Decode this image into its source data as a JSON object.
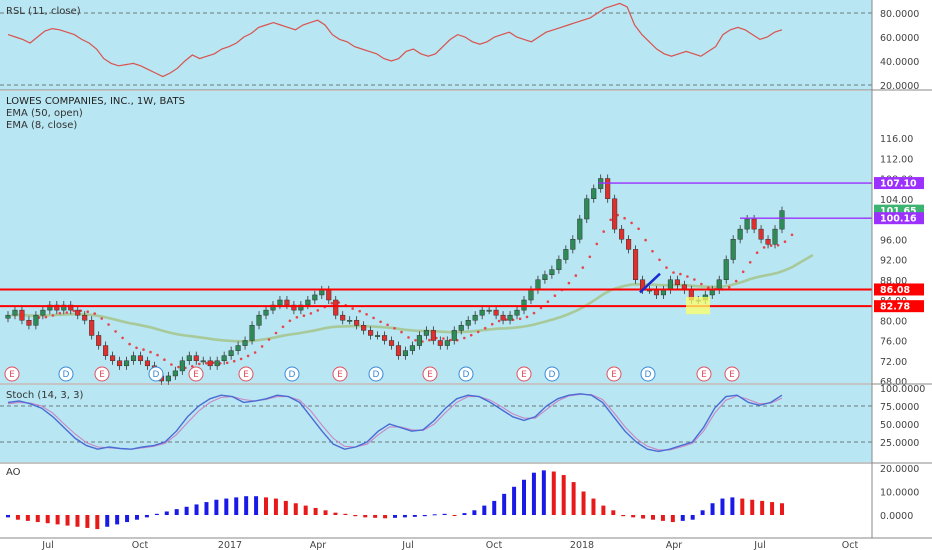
{
  "colors": {
    "panel_bg": "#b8e6f2",
    "up": "#2e8b57",
    "down": "#e0302e",
    "rsl_line": "#d9534f",
    "ema50": "#a8c99a",
    "ema8_dots": "#e8434a",
    "level": "#ff0000",
    "resistance": "#9b30ff",
    "stoch_k": "#4a6cd4",
    "stoch_d": "#c987c4",
    "ao_up": "#1a1ae6",
    "ao_down": "#e61a1a",
    "last_price": "#3cb371",
    "dividend": "#3b8bd6",
    "earnings": "#e05060"
  },
  "panels": {
    "rsl": {
      "title": "RSL (11, close)",
      "ticks": [
        "80.0000",
        "60.0000",
        "40.0000",
        "20.0000"
      ]
    },
    "price": {
      "title": "LOWES COMPANIES, INC., 1W, BATS",
      "legend": [
        "EMA (50, open)",
        "EMA (8, close)"
      ],
      "ticks": [
        "116.00",
        "112.00",
        "108.00",
        "104.00",
        "96.00",
        "92.00",
        "88.00",
        "84.00",
        "80.00",
        "76.00",
        "72.00",
        "68.00"
      ],
      "price_tags": [
        {
          "label": "107.10",
          "kind": "resistance",
          "value": 107.1
        },
        {
          "label": "101.65",
          "kind": "last",
          "value": 101.65
        },
        {
          "label": "100.16",
          "kind": "resistance",
          "value": 100.16
        },
        {
          "label": "86.08",
          "kind": "level",
          "value": 86.08
        },
        {
          "label": "82.78",
          "kind": "level",
          "value": 82.78
        }
      ],
      "events": [
        "E",
        "D",
        "E",
        "D",
        "E",
        "E",
        "D",
        "E",
        "D",
        "E",
        "D",
        "E",
        "D",
        "E",
        "D",
        "E",
        "E"
      ]
    },
    "stoch": {
      "title": "Stoch (14, 3, 3)",
      "ticks": [
        "100.0000",
        "75.0000",
        "50.0000",
        "25.0000"
      ]
    },
    "ao": {
      "title": "AO",
      "ticks": [
        "20.0000",
        "10.0000",
        "0.0000"
      ]
    }
  },
  "x_axis": [
    "Jul",
    "Oct",
    "2017",
    "Apr",
    "Jul",
    "Oct",
    "2018",
    "Apr",
    "Jul",
    "Oct"
  ],
  "chart_data": {
    "type": "candlestick",
    "title": "LOWES COMPANIES, INC., 1W, BATS",
    "ylim": [
      68,
      118
    ],
    "levels": [
      86.08,
      82.78
    ],
    "resistance_levels": [
      107.1,
      100.16
    ],
    "last_price": 101.65,
    "close": [
      81,
      82,
      80,
      79,
      81,
      82,
      83,
      82,
      83,
      82,
      81,
      80,
      77,
      75,
      73,
      72,
      71,
      72,
      73,
      72,
      71,
      69,
      68,
      69,
      70,
      72,
      73,
      72,
      72,
      71,
      72,
      73,
      74,
      75,
      76,
      79,
      81,
      82,
      83,
      84,
      83,
      82,
      83,
      84,
      85,
      86,
      84,
      81,
      80,
      80,
      79,
      78,
      77,
      77,
      76,
      75,
      73,
      74,
      75,
      77,
      78,
      76,
      75,
      76,
      78,
      79,
      80,
      81,
      82,
      82,
      81,
      80,
      81,
      82,
      84,
      86,
      88,
      89,
      90,
      92,
      94,
      96,
      100,
      104,
      106,
      108,
      104,
      98,
      96,
      94,
      88,
      86,
      86,
      85,
      86,
      88,
      87,
      86,
      84,
      84,
      85,
      86,
      88,
      92,
      96,
      98,
      100,
      98,
      96,
      95,
      98,
      101.65
    ],
    "rsl": [
      62,
      60,
      58,
      55,
      60,
      65,
      67,
      66,
      64,
      62,
      58,
      55,
      50,
      42,
      38,
      36,
      37,
      38,
      36,
      33,
      30,
      27,
      30,
      34,
      40,
      45,
      42,
      44,
      46,
      50,
      52,
      55,
      60,
      63,
      68,
      70,
      72,
      70,
      68,
      66,
      70,
      72,
      74,
      70,
      62,
      58,
      56,
      52,
      50,
      48,
      46,
      42,
      40,
      42,
      48,
      50,
      46,
      44,
      46,
      52,
      58,
      62,
      60,
      56,
      54,
      56,
      60,
      62,
      64,
      60,
      58,
      56,
      60,
      64,
      66,
      68,
      70,
      72,
      74,
      76,
      80,
      84,
      86,
      88,
      85,
      70,
      62,
      56,
      50,
      46,
      44,
      46,
      48,
      46,
      44,
      48,
      52,
      62,
      66,
      68,
      66,
      62,
      58,
      60,
      64,
      66
    ],
    "stoch_k": [
      80,
      82,
      78,
      72,
      60,
      45,
      30,
      20,
      15,
      18,
      16,
      15,
      18,
      20,
      25,
      40,
      60,
      75,
      85,
      90,
      88,
      80,
      82,
      85,
      90,
      88,
      80,
      60,
      40,
      22,
      15,
      18,
      25,
      40,
      50,
      45,
      40,
      42,
      55,
      72,
      85,
      90,
      88,
      80,
      70,
      60,
      55,
      60,
      75,
      85,
      90,
      92,
      90,
      80,
      60,
      40,
      25,
      15,
      12,
      15,
      20,
      25,
      45,
      72,
      88,
      90,
      80,
      76,
      80,
      90
    ],
    "stoch_d": [
      78,
      80,
      79,
      75,
      65,
      50,
      36,
      24,
      18,
      17,
      16,
      15,
      17,
      19,
      23,
      35,
      52,
      68,
      80,
      87,
      88,
      84,
      82,
      84,
      88,
      88,
      83,
      68,
      48,
      30,
      19,
      18,
      22,
      35,
      46,
      46,
      42,
      41,
      50,
      66,
      80,
      88,
      88,
      83,
      74,
      64,
      58,
      58,
      70,
      82,
      89,
      91,
      91,
      84,
      66,
      46,
      30,
      19,
      14,
      14,
      18,
      23,
      40,
      65,
      83,
      89,
      84,
      78,
      79,
      86
    ],
    "ao": [
      -1,
      -2,
      -2.5,
      -3,
      -3.5,
      -4,
      -4.5,
      -5,
      -5.5,
      -6,
      -5,
      -4,
      -3,
      -2,
      -1,
      0.5,
      1.5,
      2.5,
      3.5,
      4.5,
      5.5,
      6.5,
      7,
      7.5,
      8,
      8,
      7.5,
      7,
      6,
      5,
      4,
      3,
      2,
      1,
      0.5,
      -0.5,
      -1,
      -1.2,
      -1.4,
      -1.2,
      -1,
      -0.8,
      -0.5,
      0.3,
      0.5,
      -0.3,
      0.8,
      2,
      4,
      6,
      9,
      12,
      15,
      18,
      19,
      18.5,
      17,
      14,
      10,
      7,
      4,
      2,
      -0.5,
      -1,
      -1.5,
      -2,
      -2.5,
      -3,
      -2.5,
      -2,
      2,
      5,
      7,
      7.5,
      7,
      6.5,
      6,
      5.5,
      5
    ]
  }
}
